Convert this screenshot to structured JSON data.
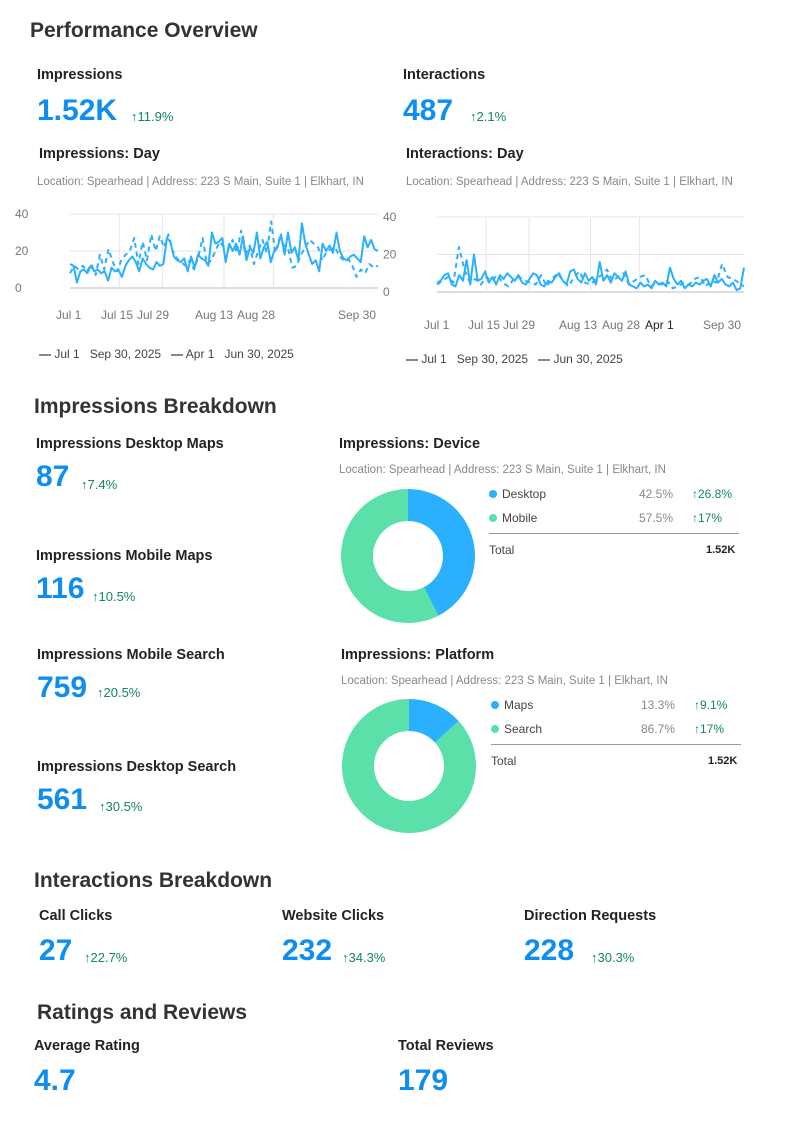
{
  "colors": {
    "accent": "#0d8ef0",
    "line": "#2bb0ff",
    "green": "#5ae0a8",
    "up": "#14875a"
  },
  "perf": {
    "title": "Performance Overview",
    "impressions": {
      "label": "Impressions",
      "value": "1.52K",
      "change": "11.9%"
    },
    "interactions": {
      "label": "Interactions",
      "value": "487",
      "change": "2.1%"
    }
  },
  "chart_data": [
    {
      "type": "line",
      "title": "Impressions: Day",
      "subtitle": "Location: Spearhead | Address: 223 S Main, Suite 1 | Elkhart, IN",
      "yticks": [
        "40",
        "20",
        "0"
      ],
      "ylim": [
        0,
        40
      ],
      "xticks": [
        "Jul 1",
        "Jul 15",
        "Jul 29",
        "Aug 13",
        "Aug 28",
        "Sep 30"
      ],
      "grid": true,
      "legend": {
        "current": "Jul 1   Sep 30, 2025",
        "previous": "Apr 1   Jun 30, 2025"
      },
      "series": [
        {
          "name": "Jul 1   Sep 30, 2025",
          "style": "solid",
          "values": [
            13,
            12,
            3,
            9,
            10,
            8,
            12,
            9,
            10,
            8,
            9,
            4,
            11,
            9,
            10,
            6,
            12,
            15,
            17,
            14,
            9,
            16,
            13,
            11,
            10,
            14,
            12,
            13,
            27,
            25,
            17,
            15,
            14,
            16,
            9,
            17,
            11,
            18,
            16,
            15,
            12,
            30,
            24,
            25,
            27,
            14,
            24,
            20,
            24,
            18,
            28,
            15,
            22,
            19,
            30,
            16,
            22,
            25,
            14,
            20,
            22,
            29,
            18,
            30,
            19,
            22,
            15,
            35,
            24,
            18,
            13,
            15,
            9,
            24,
            20,
            23,
            19,
            30,
            20,
            16,
            15,
            17,
            18,
            16,
            14,
            28,
            22,
            26,
            21,
            20
          ]
        },
        {
          "name": "Apr 1   Jun 30, 2025",
          "style": "dashed",
          "values": [
            8,
            12,
            10,
            12,
            9,
            13,
            7,
            18,
            10,
            21,
            14,
            9,
            15,
            18,
            20,
            27,
            13,
            25,
            15,
            29,
            20,
            28,
            22,
            29,
            20,
            16,
            14,
            12,
            15,
            10,
            17,
            27,
            13,
            15,
            20,
            25,
            22,
            21,
            26,
            19,
            31,
            18,
            23,
            13,
            20,
            26,
            19,
            36,
            19,
            27,
            23,
            21,
            11,
            12,
            18,
            22,
            26,
            24,
            22,
            15,
            20,
            21,
            22,
            17,
            15,
            16,
            12,
            6,
            10,
            8,
            13,
            11,
            12
          ]
        }
      ]
    },
    {
      "type": "line",
      "title": "Interactions: Day",
      "subtitle": "Location: Spearhead | Address: 223 S Main, Suite 1 | Elkhart, IN",
      "yticks": [
        "40",
        "20",
        "0"
      ],
      "ylim": [
        0,
        40
      ],
      "xticks": [
        "Jul 1",
        "Jul 15",
        "Jul 29",
        "Aug 13",
        "Aug 28",
        "Apr 1",
        "Sep 30"
      ],
      "grid": true,
      "legend": {
        "current": "Jul 1   Sep 30, 2025",
        "previous": "Jun 30, 2025"
      },
      "series": [
        {
          "name": "Jul 1   Sep 30, 2025",
          "style": "solid",
          "values": [
            5,
            6,
            9,
            10,
            4,
            3,
            9,
            6,
            17,
            4,
            20,
            6,
            7,
            11,
            5,
            8,
            4,
            9,
            7,
            10,
            8,
            6,
            9,
            5,
            4,
            7,
            10,
            9,
            4,
            3,
            6,
            5,
            8,
            10,
            6,
            4,
            11,
            12,
            7,
            5,
            10,
            6,
            8,
            4,
            16,
            6,
            9,
            5,
            10,
            8,
            6,
            11,
            4,
            3,
            2,
            5,
            3,
            4,
            2,
            6,
            4,
            5,
            3,
            13,
            7,
            4,
            6,
            2,
            4,
            3,
            5,
            4,
            6,
            7,
            3,
            9,
            5,
            7,
            4,
            3,
            5,
            1,
            2,
            13
          ]
        },
        {
          "name": "Jun 30, 2025",
          "style": "dashed",
          "values": [
            4,
            6,
            8,
            5,
            24,
            12,
            5,
            7,
            4,
            8,
            6,
            9,
            5,
            3,
            7,
            8,
            6,
            5,
            4,
            9,
            3,
            7,
            10,
            6,
            3,
            8,
            11,
            5,
            4,
            7,
            9,
            12,
            6,
            8,
            10,
            4,
            6,
            8,
            9,
            3,
            5,
            4,
            6,
            2,
            3,
            5,
            4,
            7,
            8,
            3,
            6,
            5,
            15,
            8,
            7,
            5,
            3
          ]
        }
      ]
    },
    {
      "type": "pie",
      "title": "Impressions: Device",
      "subtitle": "Location: Spearhead | Address: 223 S Main, Suite 1 | Elkhart, IN",
      "slices": [
        {
          "name": "Desktop",
          "pct": "42.5%",
          "value": 42.5,
          "change": "26.8%",
          "color": "#2bb0ff"
        },
        {
          "name": "Mobile",
          "pct": "57.5%",
          "value": 57.5,
          "change": "17%",
          "color": "#5ae0a8"
        }
      ],
      "total_label": "Total",
      "total": "1.52K"
    },
    {
      "type": "pie",
      "title": "Impressions: Platform",
      "subtitle": "Location: Spearhead | Address: 223 S Main, Suite 1 | Elkhart, IN",
      "slices": [
        {
          "name": "Maps",
          "pct": "13.3%",
          "value": 13.3,
          "change": "9.1%",
          "color": "#2bb0ff"
        },
        {
          "name": "Search",
          "pct": "86.7%",
          "value": 86.7,
          "change": "17%",
          "color": "#5ae0a8"
        }
      ],
      "total_label": "Total",
      "total": "1.52K"
    }
  ],
  "breakdown": {
    "title": "Impressions Breakdown",
    "items": [
      {
        "label": "Impressions Desktop Maps",
        "value": "87",
        "change": "7.4%"
      },
      {
        "label": "Impressions Mobile Maps",
        "value": "116",
        "change": "10.5%"
      },
      {
        "label": "Impressions Mobile Search",
        "value": "759",
        "change": "20.5%"
      },
      {
        "label": "Impressions Desktop Search",
        "value": "561",
        "change": "30.5%"
      }
    ]
  },
  "interactions": {
    "title": "Interactions Breakdown",
    "items": [
      {
        "label": "Call Clicks",
        "value": "27",
        "change": "22.7%"
      },
      {
        "label": "Website Clicks",
        "value": "232",
        "change": "34.3%"
      },
      {
        "label": "Direction Requests",
        "value": "228",
        "change": "30.3%"
      }
    ]
  },
  "ratings": {
    "title": "Ratings and Reviews",
    "avg": {
      "label": "Average Rating",
      "value": "4.7"
    },
    "total": {
      "label": "Total Reviews",
      "value": "179"
    }
  }
}
